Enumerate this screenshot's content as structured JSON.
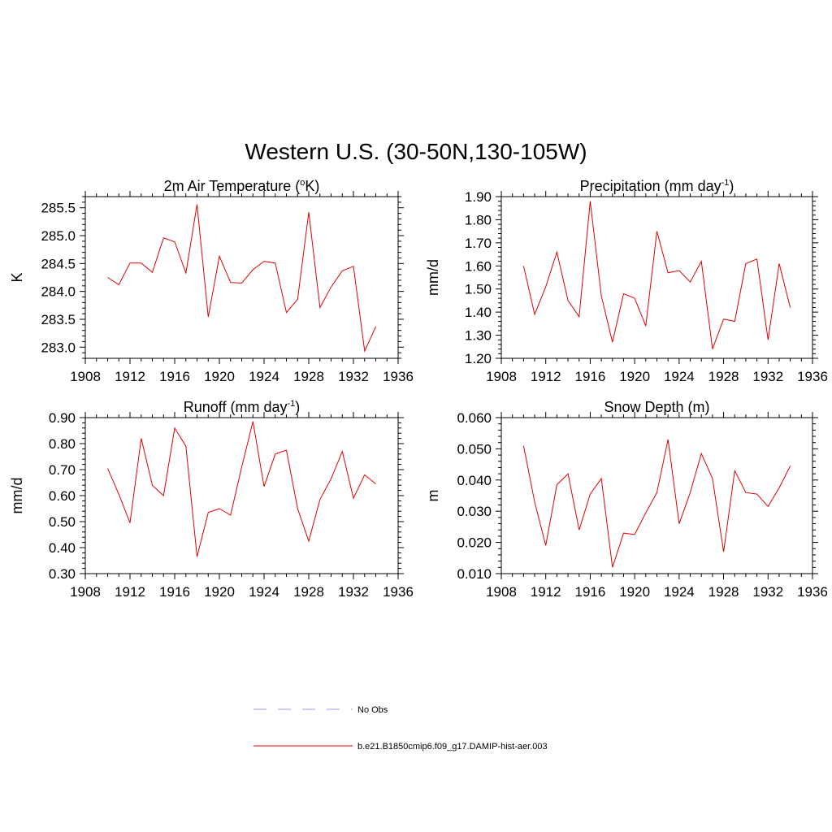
{
  "figure": {
    "title": "Western U.S. (30-50N,130-105W)"
  },
  "legend": {
    "entries": [
      {
        "label": "No Obs",
        "color": "#9999ff",
        "style": "dashed"
      },
      {
        "label": "b.e21.B1850cmip6.f09_g17.DAMIP-hist-aer.003",
        "color": "#e00000",
        "style": "solid"
      }
    ]
  },
  "chart_data": [
    {
      "type": "line",
      "title": "2m Air Temperature (",
      "title_sup": "o",
      "title_tail": "K)",
      "ylabel": "K",
      "xlim": [
        1908,
        1936
      ],
      "ylim": [
        282.8,
        285.7
      ],
      "xticks": [
        1908,
        1912,
        1916,
        1920,
        1924,
        1928,
        1932,
        1936
      ],
      "yticks": [
        283.0,
        283.5,
        284.0,
        284.5,
        285.0,
        285.5
      ],
      "ytick_labels": [
        "283.0",
        "283.5",
        "284.0",
        "284.5",
        "285.0",
        "285.5"
      ],
      "series": [
        {
          "color": "#e00000",
          "x": [
            1910,
            1911,
            1912,
            1913,
            1914,
            1915,
            1916,
            1917,
            1918,
            1919,
            1920,
            1921,
            1922,
            1923,
            1924,
            1925,
            1926,
            1927,
            1928,
            1929,
            1930,
            1931,
            1932,
            1933,
            1934
          ],
          "y": [
            284.25,
            284.12,
            284.51,
            284.51,
            284.34,
            284.96,
            284.89,
            284.33,
            285.56,
            283.54,
            284.63,
            284.16,
            284.15,
            284.39,
            284.54,
            284.51,
            283.62,
            283.86,
            285.42,
            283.71,
            284.08,
            284.37,
            284.45,
            282.93,
            283.37
          ]
        }
      ]
    },
    {
      "type": "line",
      "title": "Precipitation (mm day",
      "title_sup": "-1",
      "title_tail": ")",
      "ylabel": "mm/d",
      "xlim": [
        1908,
        1936
      ],
      "ylim": [
        1.2,
        1.9
      ],
      "xticks": [
        1908,
        1912,
        1916,
        1920,
        1924,
        1928,
        1932,
        1936
      ],
      "yticks": [
        1.2,
        1.3,
        1.4,
        1.5,
        1.6,
        1.7,
        1.8,
        1.9
      ],
      "ytick_labels": [
        "1.20",
        "1.30",
        "1.40",
        "1.50",
        "1.60",
        "1.70",
        "1.80",
        "1.90"
      ],
      "series": [
        {
          "color": "#e00000",
          "x": [
            1910,
            1911,
            1912,
            1913,
            1914,
            1915,
            1916,
            1917,
            1918,
            1919,
            1920,
            1921,
            1922,
            1923,
            1924,
            1925,
            1926,
            1927,
            1928,
            1929,
            1930,
            1931,
            1932,
            1933,
            1934
          ],
          "y": [
            1.6,
            1.39,
            1.51,
            1.66,
            1.45,
            1.38,
            1.88,
            1.47,
            1.27,
            1.48,
            1.46,
            1.34,
            1.75,
            1.57,
            1.58,
            1.53,
            1.62,
            1.24,
            1.37,
            1.36,
            1.61,
            1.63,
            1.28,
            1.61,
            1.42
          ]
        }
      ]
    },
    {
      "type": "line",
      "title": "Runoff (mm day",
      "title_sup": "-1",
      "title_tail": ")",
      "ylabel": "mm/d",
      "xlim": [
        1908,
        1936
      ],
      "ylim": [
        0.3,
        0.9
      ],
      "xticks": [
        1908,
        1912,
        1916,
        1920,
        1924,
        1928,
        1932,
        1936
      ],
      "yticks": [
        0.3,
        0.4,
        0.5,
        0.6,
        0.7,
        0.8,
        0.9
      ],
      "ytick_labels": [
        "0.30",
        "0.40",
        "0.50",
        "0.60",
        "0.70",
        "0.80",
        "0.90"
      ],
      "series": [
        {
          "color": "#e00000",
          "x": [
            1910,
            1911,
            1912,
            1913,
            1914,
            1915,
            1916,
            1917,
            1918,
            1919,
            1920,
            1921,
            1922,
            1923,
            1924,
            1925,
            1926,
            1927,
            1928,
            1929,
            1930,
            1931,
            1932,
            1933,
            1934
          ],
          "y": [
            0.705,
            0.605,
            0.495,
            0.82,
            0.64,
            0.6,
            0.86,
            0.79,
            0.365,
            0.535,
            0.55,
            0.525,
            0.71,
            0.885,
            0.635,
            0.76,
            0.775,
            0.55,
            0.425,
            0.585,
            0.665,
            0.77,
            0.59,
            0.68,
            0.645
          ]
        }
      ]
    },
    {
      "type": "line",
      "title": "Snow Depth (m)",
      "title_sup": "",
      "title_tail": "",
      "ylabel": "m",
      "xlim": [
        1908,
        1936
      ],
      "ylim": [
        0.01,
        0.06
      ],
      "xticks": [
        1908,
        1912,
        1916,
        1920,
        1924,
        1928,
        1932,
        1936
      ],
      "yticks": [
        0.01,
        0.02,
        0.03,
        0.04,
        0.05,
        0.06
      ],
      "ytick_labels": [
        "0.010",
        "0.020",
        "0.030",
        "0.040",
        "0.050",
        "0.060"
      ],
      "series": [
        {
          "color": "#e00000",
          "x": [
            1910,
            1911,
            1912,
            1913,
            1914,
            1915,
            1916,
            1917,
            1918,
            1919,
            1920,
            1921,
            1922,
            1923,
            1924,
            1925,
            1926,
            1927,
            1928,
            1929,
            1930,
            1931,
            1932,
            1933,
            1934
          ],
          "y": [
            0.051,
            0.033,
            0.019,
            0.0385,
            0.042,
            0.024,
            0.0355,
            0.0405,
            0.012,
            0.023,
            0.0225,
            0.0295,
            0.036,
            0.053,
            0.026,
            0.036,
            0.0485,
            0.0405,
            0.017,
            0.043,
            0.036,
            0.0355,
            0.0315,
            0.0375,
            0.0445
          ]
        }
      ]
    }
  ]
}
